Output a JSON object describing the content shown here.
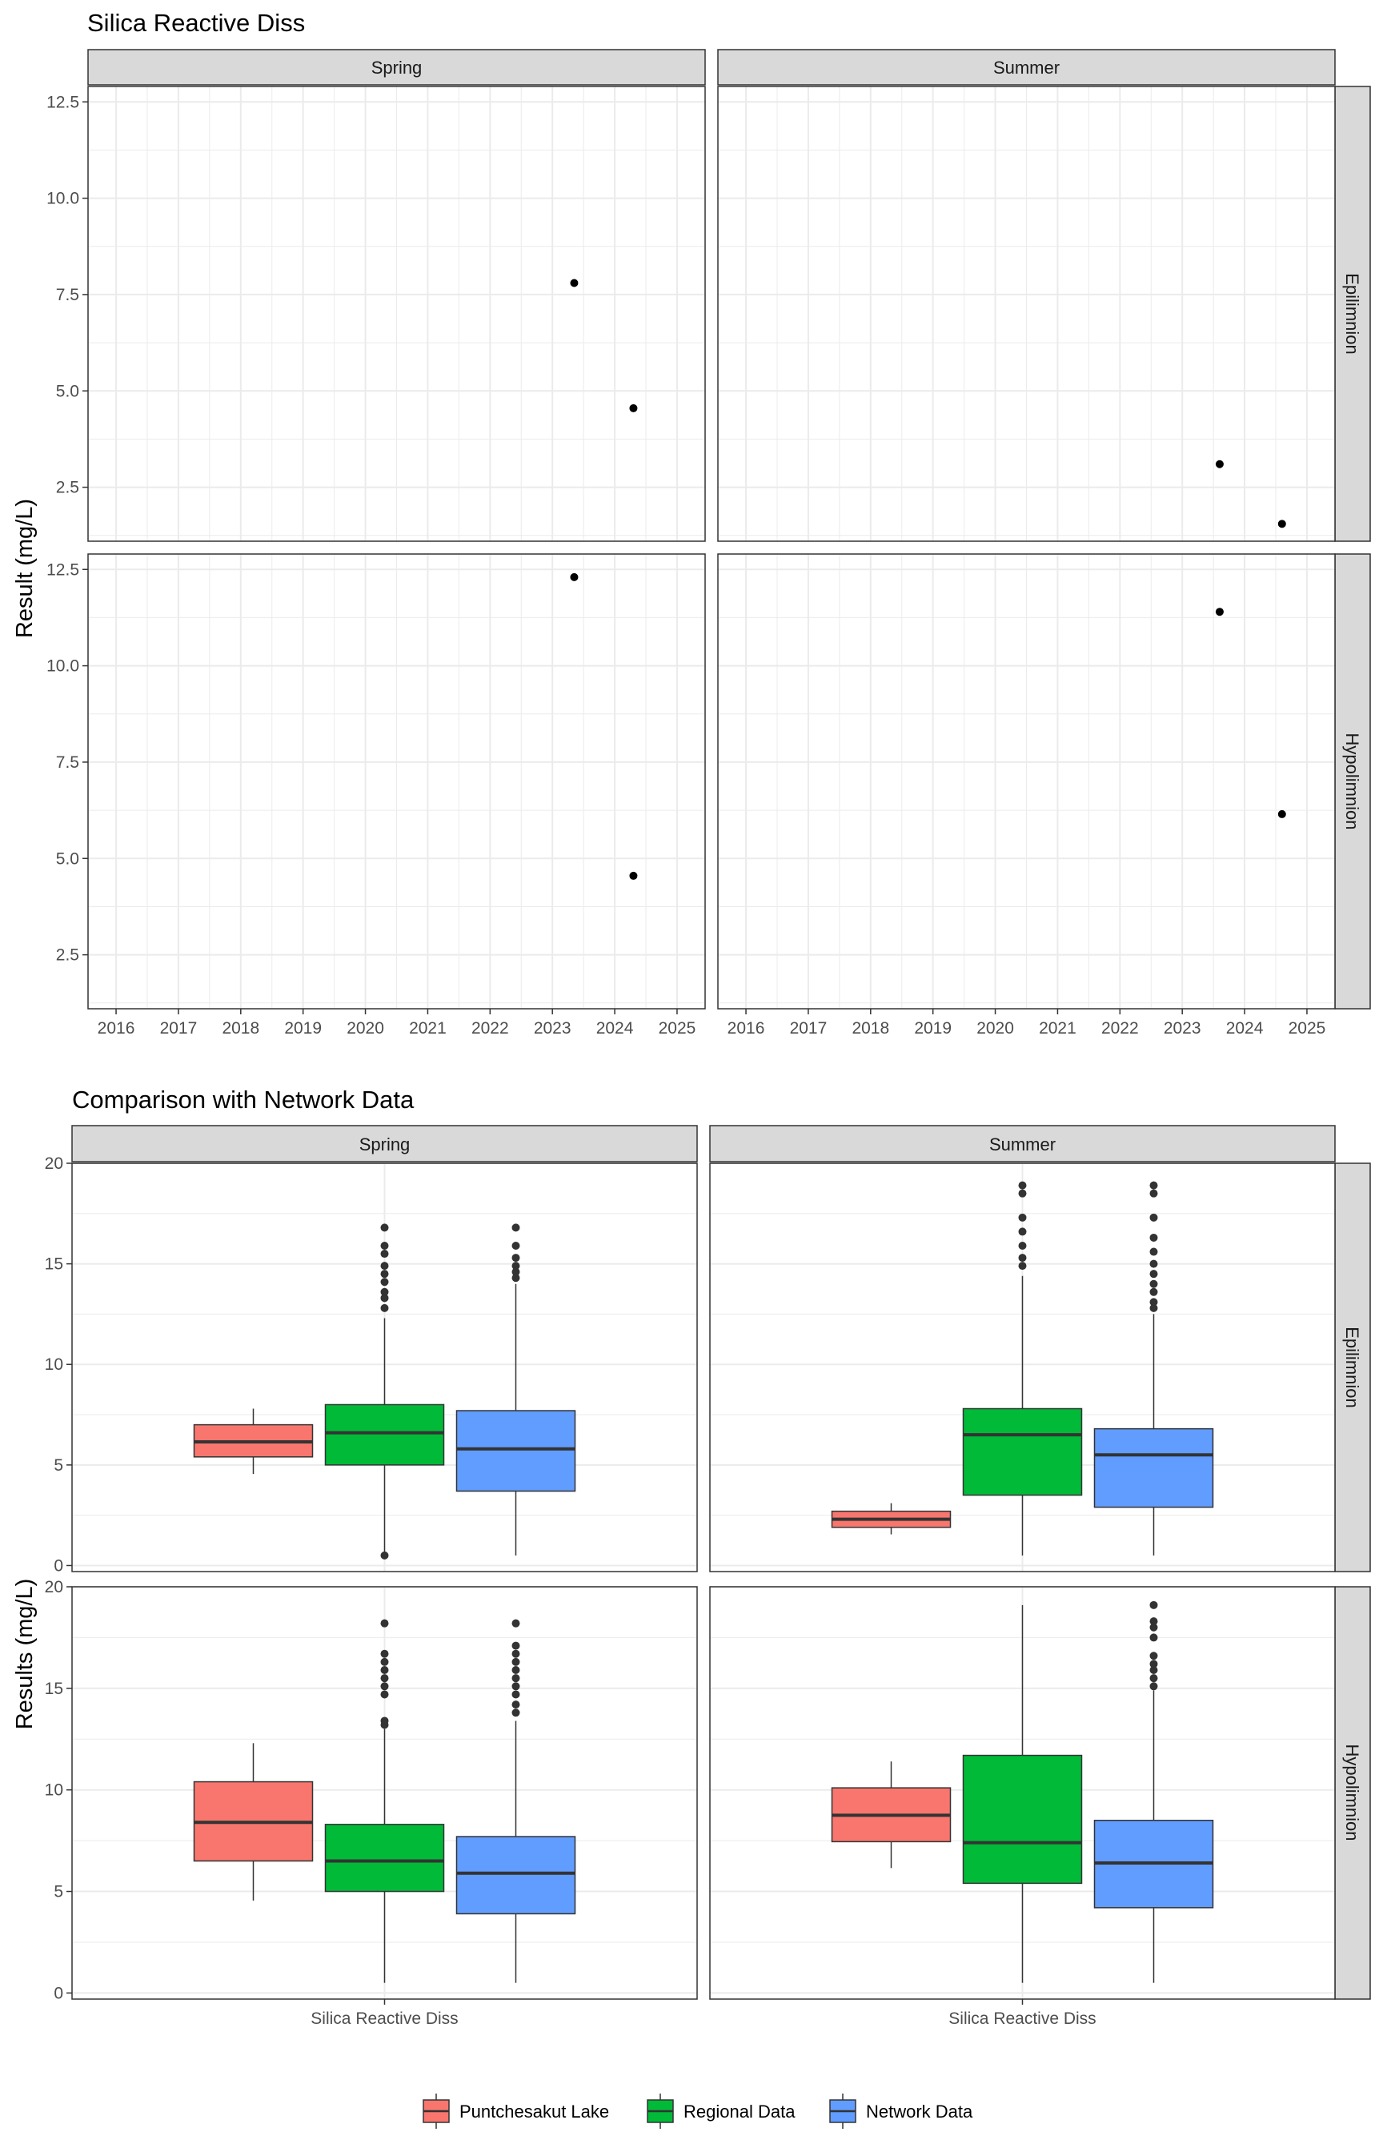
{
  "colors": {
    "puntchesakut": "#F8766D",
    "regional": "#00BA38",
    "network": "#619CFF",
    "strip_fill": "#D9D9D9",
    "grid": "#EBEBEB"
  },
  "legend": {
    "items": [
      {
        "label": "Puntchesakut Lake",
        "color": "#F8766D"
      },
      {
        "label": "Regional Data",
        "color": "#00BA38"
      },
      {
        "label": "Network Data",
        "color": "#619CFF"
      }
    ]
  },
  "chart_data": [
    {
      "type": "scatter",
      "title": "Silica Reactive Diss",
      "ylabel": "Result (mg/L)",
      "xlabel": "",
      "column_facets": [
        "Spring",
        "Summer"
      ],
      "row_facets": [
        "Epilimnion",
        "Hypolimnion"
      ],
      "x_ticks": [
        "2016",
        "2017",
        "2018",
        "2019",
        "2020",
        "2021",
        "2022",
        "2023",
        "2024",
        "2025"
      ],
      "xlim": [
        2015.55,
        2025.45
      ],
      "y_ticks": [
        {
          "value": 2.5,
          "label": "2.5"
        },
        {
          "value": 5.0,
          "label": "5.0"
        },
        {
          "value": 7.5,
          "label": "7.5"
        },
        {
          "value": 10.0,
          "label": "10.0"
        },
        {
          "value": 12.5,
          "label": "12.5"
        }
      ],
      "ylim": [
        1.1,
        12.9
      ],
      "grid": true,
      "panels": [
        {
          "season": "Spring",
          "layer": "Epilimnion",
          "points": [
            {
              "x": 2023.35,
              "y": 7.8
            },
            {
              "x": 2024.3,
              "y": 4.55
            }
          ]
        },
        {
          "season": "Summer",
          "layer": "Epilimnion",
          "points": [
            {
              "x": 2023.6,
              "y": 3.1
            },
            {
              "x": 2024.6,
              "y": 1.55
            }
          ]
        },
        {
          "season": "Spring",
          "layer": "Hypolimnion",
          "points": [
            {
              "x": 2023.35,
              "y": 12.3
            },
            {
              "x": 2024.3,
              "y": 4.55
            }
          ]
        },
        {
          "season": "Summer",
          "layer": "Hypolimnion",
          "points": [
            {
              "x": 2023.6,
              "y": 11.4
            },
            {
              "x": 2024.6,
              "y": 6.15
            }
          ]
        }
      ]
    },
    {
      "type": "box",
      "title": "Comparison with Network Data",
      "ylabel": "Results (mg/L)",
      "xlabel": "",
      "x_category": "Silica Reactive Diss",
      "column_facets": [
        "Spring",
        "Summer"
      ],
      "row_facets": [
        "Epilimnion",
        "Hypolimnion"
      ],
      "y_ticks": [
        {
          "value": 0,
          "label": "0"
        },
        {
          "value": 5,
          "label": "5"
        },
        {
          "value": 10,
          "label": "10"
        },
        {
          "value": 15,
          "label": "15"
        },
        {
          "value": 20,
          "label": "20"
        }
      ],
      "ylim": [
        -0.3,
        20
      ],
      "grid": true,
      "legend_position": "bottom",
      "series": [
        "Puntchesakut Lake",
        "Regional Data",
        "Network Data"
      ],
      "panels": [
        {
          "season": "Spring",
          "layer": "Epilimnion",
          "boxes": [
            {
              "series": "Puntchesakut Lake",
              "min": 4.55,
              "q1": 5.4,
              "median": 6.15,
              "q3": 7.0,
              "max": 7.8,
              "outliers": []
            },
            {
              "series": "Regional Data",
              "min": 0.5,
              "q1": 5.0,
              "median": 6.6,
              "q3": 8.0,
              "max": 12.3,
              "outliers": [
                0.5,
                12.8,
                13.3,
                13.6,
                14.1,
                14.5,
                14.9,
                15.5,
                15.9,
                16.8
              ]
            },
            {
              "series": "Network Data",
              "min": 0.5,
              "q1": 3.7,
              "median": 5.8,
              "q3": 7.7,
              "max": 14.0,
              "outliers": [
                14.3,
                14.6,
                14.9,
                15.3,
                15.9,
                16.8
              ]
            }
          ]
        },
        {
          "season": "Summer",
          "layer": "Epilimnion",
          "boxes": [
            {
              "series": "Puntchesakut Lake",
              "min": 1.55,
              "q1": 1.9,
              "median": 2.3,
              "q3": 2.7,
              "max": 3.1,
              "outliers": []
            },
            {
              "series": "Regional Data",
              "min": 0.5,
              "q1": 3.5,
              "median": 6.5,
              "q3": 7.8,
              "max": 14.4,
              "outliers": [
                14.9,
                15.3,
                15.9,
                16.6,
                17.3,
                18.5,
                18.9
              ]
            },
            {
              "series": "Network Data",
              "min": 0.5,
              "q1": 2.9,
              "median": 5.5,
              "q3": 6.8,
              "max": 12.5,
              "outliers": [
                12.8,
                13.1,
                13.6,
                14.0,
                14.5,
                15.0,
                15.6,
                16.3,
                17.3,
                18.5,
                18.9
              ]
            }
          ]
        },
        {
          "season": "Spring",
          "layer": "Hypolimnion",
          "boxes": [
            {
              "series": "Puntchesakut Lake",
              "min": 4.55,
              "q1": 6.5,
              "median": 8.4,
              "q3": 10.4,
              "max": 12.3,
              "outliers": []
            },
            {
              "series": "Regional Data",
              "min": 0.5,
              "q1": 5.0,
              "median": 6.5,
              "q3": 8.3,
              "max": 13.0,
              "outliers": [
                13.2,
                13.4,
                14.7,
                15.1,
                15.5,
                15.9,
                16.3,
                16.7,
                18.2
              ]
            },
            {
              "series": "Network Data",
              "min": 0.5,
              "q1": 3.9,
              "median": 5.9,
              "q3": 7.7,
              "max": 13.4,
              "outliers": [
                13.8,
                14.2,
                14.7,
                15.1,
                15.5,
                15.9,
                16.3,
                16.7,
                17.1,
                18.2
              ]
            }
          ]
        },
        {
          "season": "Summer",
          "layer": "Hypolimnion",
          "boxes": [
            {
              "series": "Puntchesakut Lake",
              "min": 6.15,
              "q1": 7.45,
              "median": 8.75,
              "q3": 10.1,
              "max": 11.4,
              "outliers": []
            },
            {
              "series": "Regional Data",
              "min": 0.5,
              "q1": 5.4,
              "median": 7.4,
              "q3": 11.7,
              "max": 19.1,
              "outliers": []
            },
            {
              "series": "Network Data",
              "min": 0.5,
              "q1": 4.2,
              "median": 6.4,
              "q3": 8.5,
              "max": 14.9,
              "outliers": [
                15.1,
                15.5,
                15.9,
                16.2,
                16.6,
                17.5,
                18.0,
                18.3,
                19.1
              ]
            }
          ]
        }
      ]
    }
  ]
}
